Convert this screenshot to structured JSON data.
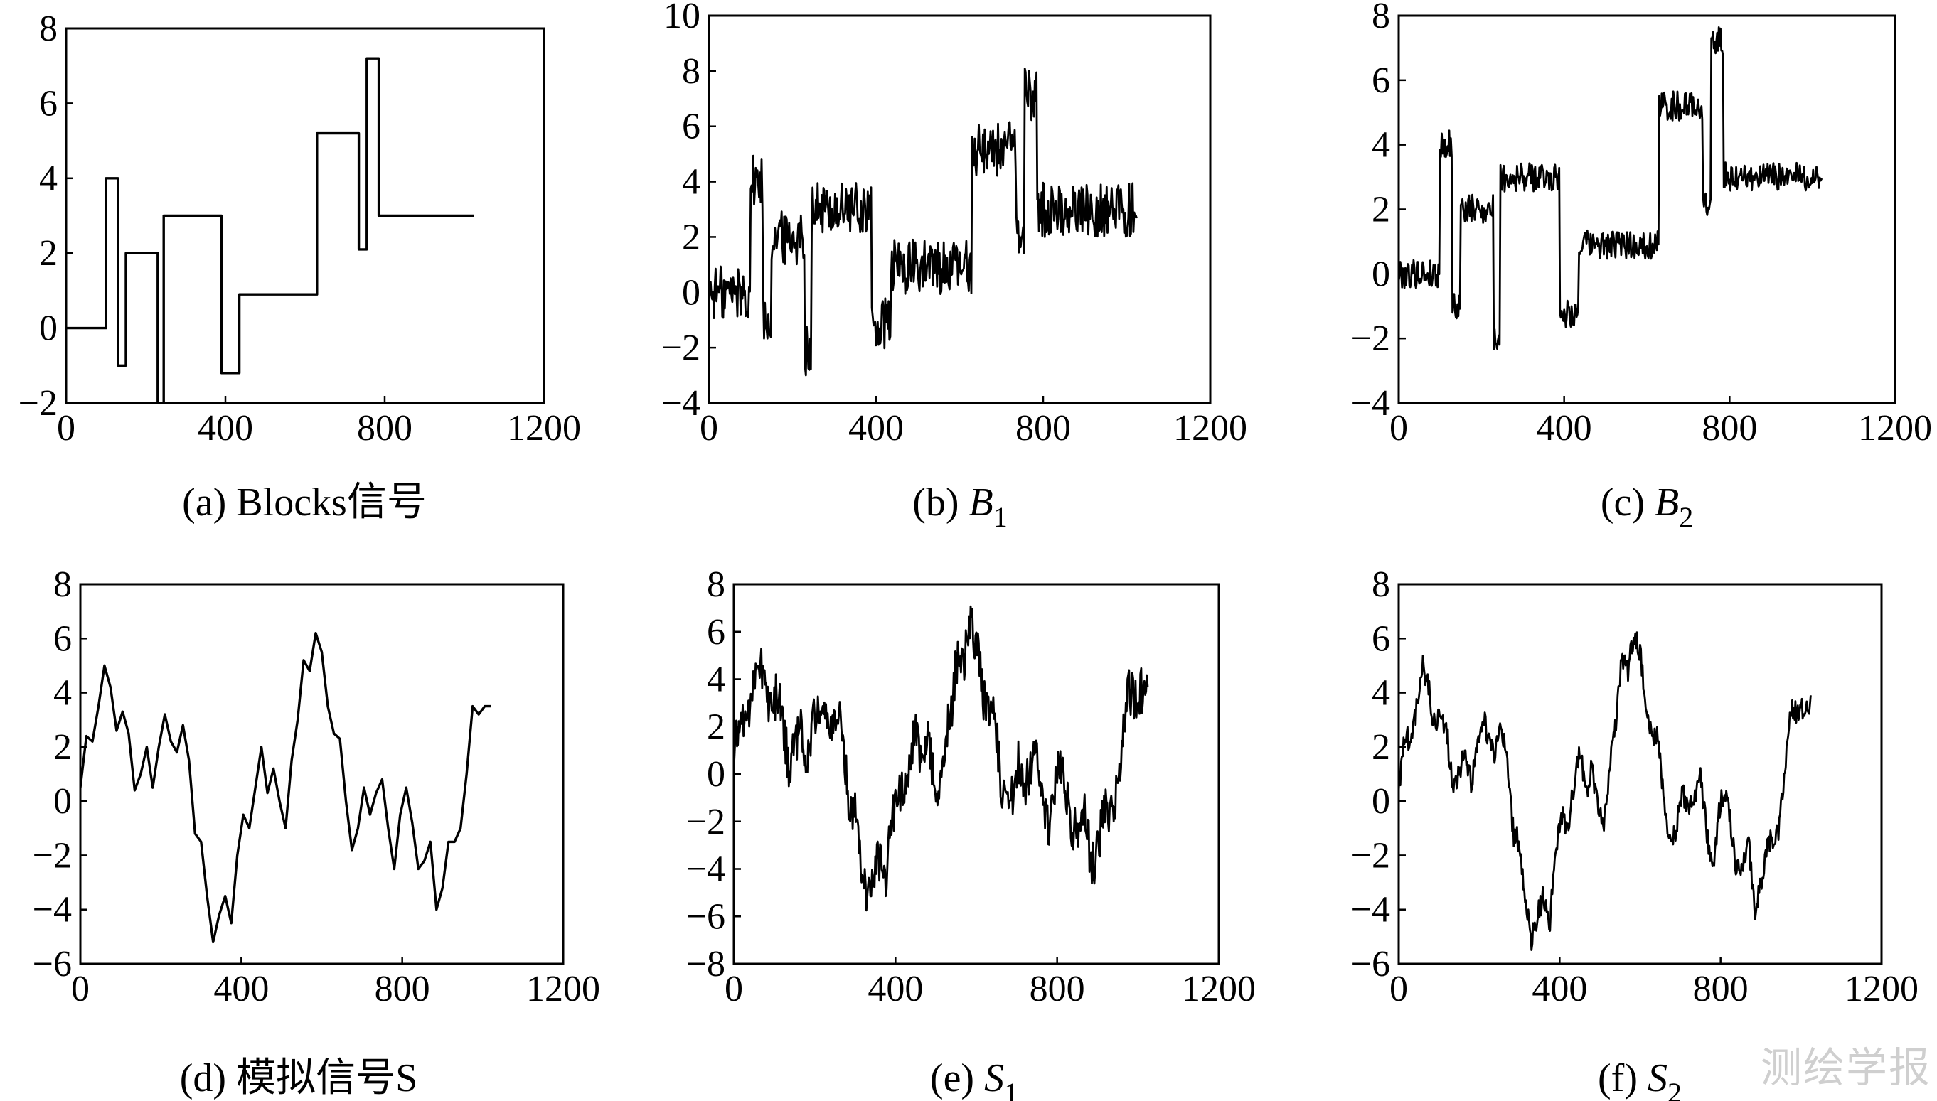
{
  "chart_data": [
    {
      "id": "a",
      "type": "line",
      "caption": "(a) Blocks信号",
      "xlim": [
        0,
        1200
      ],
      "ylim": [
        -2,
        8
      ],
      "xticks": [
        "0",
        "400",
        "800",
        "1200"
      ],
      "yticks": [
        "−2",
        "0",
        "2",
        "4",
        "6",
        "8"
      ],
      "x": [
        0,
        100,
        100,
        130,
        130,
        150,
        150,
        230,
        230,
        245,
        245,
        390,
        390,
        435,
        435,
        630,
        630,
        735,
        735,
        755,
        755,
        785,
        785,
        1024
      ],
      "y": [
        0,
        0,
        4,
        4,
        -1,
        -1,
        2,
        2,
        -2,
        -2,
        3,
        3,
        -1.2,
        -1.2,
        0.9,
        0.9,
        5.2,
        5.2,
        2.1,
        2.1,
        7.2,
        7.2,
        3,
        3
      ]
    },
    {
      "id": "b",
      "type": "line",
      "style": "noisy",
      "caption": "(b) B1",
      "caption_main": "B",
      "caption_sub": "1",
      "xlim": [
        0,
        1200
      ],
      "ylim": [
        -4,
        10
      ],
      "xticks": [
        "0",
        "400",
        "800",
        "1200"
      ],
      "yticks": [
        "−4",
        "−2",
        "0",
        "2",
        "4",
        "6",
        "8",
        "10"
      ],
      "levels_x": [
        0,
        100,
        130,
        150,
        230,
        245,
        390,
        435,
        630,
        735,
        755,
        785,
        1024
      ],
      "levels_y": [
        0,
        4,
        -1,
        2,
        -2,
        3,
        -1.2,
        0.9,
        5.2,
        2.1,
        7.2,
        3
      ],
      "noise_amplitude": 1.0
    },
    {
      "id": "c",
      "type": "line",
      "style": "noisy",
      "caption": "(c) B2",
      "caption_main": "B",
      "caption_sub": "2",
      "xlim": [
        0,
        1200
      ],
      "ylim": [
        -4,
        8
      ],
      "xticks": [
        "0",
        "400",
        "800",
        "1200"
      ],
      "yticks": [
        "−4",
        "−2",
        "0",
        "2",
        "4",
        "6",
        "8"
      ],
      "levels_x": [
        0,
        100,
        130,
        150,
        230,
        245,
        390,
        435,
        630,
        735,
        755,
        785,
        1024
      ],
      "levels_y": [
        0,
        4,
        -1,
        2,
        -2,
        3,
        -1.2,
        0.9,
        5.2,
        2.1,
        7.2,
        3
      ],
      "noise_amplitude": 0.45
    },
    {
      "id": "d",
      "type": "line",
      "caption": "(d) 模拟信号S",
      "xlim": [
        0,
        1200
      ],
      "ylim": [
        -6,
        8
      ],
      "xticks": [
        "0",
        "400",
        "800",
        "1200"
      ],
      "yticks": [
        "−6",
        "−4",
        "−2",
        "0",
        "2",
        "4",
        "6",
        "8"
      ],
      "x": [
        0,
        15,
        30,
        45,
        60,
        75,
        90,
        105,
        120,
        135,
        150,
        165,
        180,
        195,
        210,
        225,
        240,
        255,
        270,
        285,
        300,
        315,
        330,
        345,
        360,
        375,
        390,
        405,
        420,
        435,
        450,
        465,
        480,
        495,
        510,
        525,
        540,
        555,
        570,
        585,
        600,
        615,
        630,
        645,
        660,
        675,
        690,
        705,
        720,
        735,
        750,
        765,
        780,
        795,
        810,
        825,
        840,
        855,
        870,
        885,
        900,
        915,
        930,
        945,
        960,
        975,
        990,
        1005,
        1020
      ],
      "y": [
        0.5,
        2.4,
        2.2,
        3.5,
        5.0,
        4.2,
        2.6,
        3.3,
        2.5,
        0.4,
        1.0,
        2.0,
        0.5,
        2.0,
        3.2,
        2.2,
        1.8,
        2.8,
        1.5,
        -1.2,
        -1.5,
        -3.5,
        -5.2,
        -4.2,
        -3.5,
        -4.5,
        -2.0,
        -0.5,
        -1.0,
        0.5,
        2.0,
        0.3,
        1.2,
        0.0,
        -1.0,
        1.5,
        3.0,
        5.2,
        4.8,
        6.2,
        5.5,
        3.5,
        2.5,
        2.3,
        0.0,
        -1.8,
        -1.0,
        0.5,
        -0.5,
        0.3,
        0.8,
        -1.0,
        -2.5,
        -0.5,
        0.5,
        -0.8,
        -2.5,
        -2.2,
        -1.5,
        -4.0,
        -3.2,
        -1.5,
        -1.5,
        -1.0,
        1.0,
        3.5,
        3.2,
        3.5,
        3.5
      ]
    },
    {
      "id": "e",
      "type": "line",
      "style": "noisy",
      "caption": "(e) S1",
      "caption_main": "S",
      "caption_sub": "1",
      "xlim": [
        0,
        1200
      ],
      "ylim": [
        -8,
        8
      ],
      "xticks": [
        "0",
        "400",
        "800",
        "1200"
      ],
      "yticks": [
        "−8",
        "−6",
        "−4",
        "−2",
        "0",
        "2",
        "4",
        "6",
        "8"
      ],
      "base_signal": "d",
      "noise_amplitude": 1.0
    },
    {
      "id": "f",
      "type": "line",
      "style": "noisy",
      "caption": "(f) S2",
      "caption_main": "S",
      "caption_sub": "2",
      "xlim": [
        0,
        1200
      ],
      "ylim": [
        -6,
        8
      ],
      "xticks": [
        "0",
        "400",
        "800",
        "1200"
      ],
      "yticks": [
        "−6",
        "−4",
        "−2",
        "0",
        "2",
        "4",
        "6",
        "8"
      ],
      "base_signal": "d",
      "noise_amplitude": 0.45
    }
  ],
  "watermark": "测绘学报"
}
